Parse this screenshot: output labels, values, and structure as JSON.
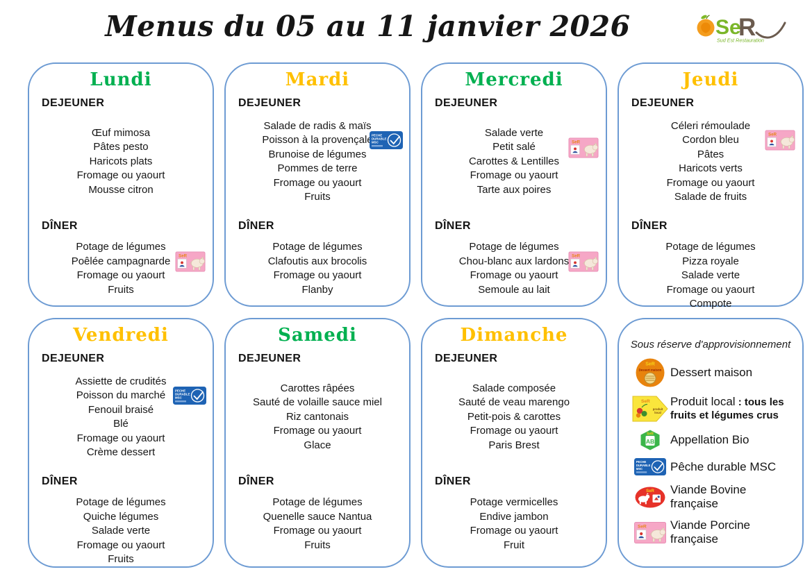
{
  "page": {
    "title": "Menus du 05 au 11 janvier 2026"
  },
  "logo": {
    "se": "Se",
    "r": "R",
    "tagline": "Sud Est Restauration"
  },
  "labels": {
    "lunch": "DEJEUNER",
    "dinner": "DÎNER"
  },
  "colors": {
    "day_green": "#00B050",
    "day_yellow": "#FFC000",
    "card_border": "#6D9BD3",
    "pork_badge": "#F6A7C6",
    "msc_badge": "#1E63B4"
  },
  "days": [
    {
      "name": "Lundi",
      "color": "green",
      "lunch": [
        {
          "text": "Œuf mimosa"
        },
        {
          "text": "Pâtes pesto"
        },
        {
          "text": "Haricots plats"
        },
        {
          "text": "Fromage ou yaourt"
        },
        {
          "text": "Mousse citron"
        }
      ],
      "dinner": [
        {
          "text": "Potage de légumes"
        },
        {
          "text": "Poêlée campagnarde",
          "badge": "pork"
        },
        {
          "text": "Fromage ou yaourt"
        },
        {
          "text": "Fruits"
        }
      ]
    },
    {
      "name": "Mardi",
      "color": "yellow",
      "lunch": [
        {
          "text": "Salade de radis & maïs"
        },
        {
          "text": "Poisson à la provençale",
          "badge": "msc"
        },
        {
          "text": "Brunoise de légumes"
        },
        {
          "text": "Pommes de terre"
        },
        {
          "text": "Fromage ou yaourt"
        },
        {
          "text": "Fruits"
        }
      ],
      "dinner": [
        {
          "text": "Potage de légumes"
        },
        {
          "text": "Clafoutis aux brocolis"
        },
        {
          "text": "Fromage ou yaourt"
        },
        {
          "text": "Flanby"
        }
      ]
    },
    {
      "name": "Mercredi",
      "color": "green",
      "lunch": [
        {
          "text": "Salade verte"
        },
        {
          "text": "Petit salé",
          "badge": "pork"
        },
        {
          "text": "Carottes & Lentilles"
        },
        {
          "text": "Fromage ou yaourt"
        },
        {
          "text": "Tarte aux poires"
        }
      ],
      "dinner": [
        {
          "text": "Potage de légumes"
        },
        {
          "text": "Chou-blanc aux lardons",
          "badge": "pork"
        },
        {
          "text": "Fromage ou yaourt"
        },
        {
          "text": "Semoule au lait"
        }
      ]
    },
    {
      "name": "Jeudi",
      "color": "yellow",
      "lunch": [
        {
          "text": "Céleri rémoulade"
        },
        {
          "text": "Cordon bleu",
          "badge": "pork"
        },
        {
          "text": "Pâtes"
        },
        {
          "text": "Haricots verts"
        },
        {
          "text": "Fromage ou yaourt"
        },
        {
          "text": "Salade de fruits"
        }
      ],
      "dinner": [
        {
          "text": "Potage de légumes"
        },
        {
          "text": "Pizza royale"
        },
        {
          "text": "Salade verte"
        },
        {
          "text": "Fromage ou yaourt"
        },
        {
          "text": "Compote"
        }
      ]
    },
    {
      "name": "Vendredi",
      "color": "yellow",
      "lunch": [
        {
          "text": "Assiette de crudités"
        },
        {
          "text": "Poisson du marché",
          "badge": "msc"
        },
        {
          "text": "Fenouil braisé"
        },
        {
          "text": "Blé"
        },
        {
          "text": "Fromage ou yaourt"
        },
        {
          "text": "Crème dessert"
        }
      ],
      "dinner": [
        {
          "text": "Potage de légumes"
        },
        {
          "text": "Quiche légumes"
        },
        {
          "text": "Salade verte"
        },
        {
          "text": "Fromage ou yaourt"
        },
        {
          "text": "Fruits"
        }
      ]
    },
    {
      "name": "Samedi",
      "color": "green",
      "lunch": [
        {
          "text": "Carottes râpées"
        },
        {
          "text": "Sauté de volaille sauce miel"
        },
        {
          "text": "Riz cantonais"
        },
        {
          "text": "Fromage ou yaourt"
        },
        {
          "text": "Glace"
        }
      ],
      "dinner": [
        {
          "text": "Potage de légumes"
        },
        {
          "text": "Quenelle sauce Nantua"
        },
        {
          "text": "Fromage ou yaourt"
        },
        {
          "text": "Fruits"
        }
      ]
    },
    {
      "name": "Dimanche",
      "color": "yellow",
      "lunch": [
        {
          "text": "Salade composée"
        },
        {
          "text": "Sauté de veau marengo"
        },
        {
          "text": "Petit-pois & carottes"
        },
        {
          "text": "Fromage ou yaourt"
        },
        {
          "text": "Paris Brest"
        }
      ],
      "dinner": [
        {
          "text": "Potage vermicelles"
        },
        {
          "text": "Endive jambon"
        },
        {
          "text": "Fromage ou yaourt"
        },
        {
          "text": "Fruit"
        }
      ]
    }
  ],
  "legend": {
    "header": "Sous réserve d'approvisionnement",
    "items": [
      {
        "icon": "dessert-maison",
        "label": "Dessert maison"
      },
      {
        "icon": "produit-local",
        "label": "Produit local",
        "label_bold": " : tous les fruits et légumes crus"
      },
      {
        "icon": "appellation-bio",
        "label": "Appellation Bio"
      },
      {
        "icon": "peche-durable-msc",
        "label": "Pêche durable MSC"
      },
      {
        "icon": "viande-bovine",
        "label": "Viande Bovine française"
      },
      {
        "icon": "viande-porcine",
        "label": "Viande Porcine française"
      }
    ]
  },
  "badge_art": {
    "brand": "SeR",
    "msc_lines": [
      "PECHE",
      "DURABLE",
      "MSC"
    ],
    "dessert_text": "Dessert maison",
    "produit_lines": [
      "produit",
      "local"
    ],
    "ab_text": "AB"
  }
}
